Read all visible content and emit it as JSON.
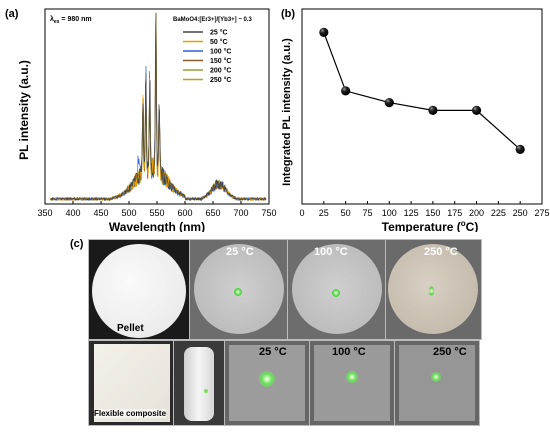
{
  "panel_a": {
    "tag": "(a)",
    "excitation_label": "λex = 980 nm",
    "excitation_main": "λ",
    "excitation_sub": "ex",
    "excitation_rest": " = 980 nm",
    "sample_label": "BaMoO4:[Er3+]/[Yb3+] ~ 0.3",
    "colors": [
      "#444444",
      "#e8a000",
      "#2f62d8",
      "#8a5a2b",
      "#8fa03a",
      "#c49a18"
    ]
  },
  "panel_b": {
    "tag": "(b)"
  },
  "panel_c": {
    "tag": "(c)",
    "pellet_label": "Pellet",
    "flexible_label": "Flexible composite",
    "top_temps": [
      "25 °C",
      "100 °C",
      "250 °C"
    ],
    "bottom_temps": [
      "25 °C",
      "100 °C",
      "250 °C"
    ]
  },
  "chart_data": [
    {
      "type": "line",
      "xlabel": "Wavelength (nm)",
      "ylabel": "PL intensity (a.u.)",
      "xlim": [
        350,
        750
      ],
      "xticks": [
        350,
        400,
        450,
        500,
        550,
        600,
        650,
        700,
        750
      ],
      "annotations": [
        "λex = 980 nm",
        "BaMoO4:[Er3+]/[Yb3+] ~ 0.3"
      ],
      "legend_position": "top-right",
      "series": [
        {
          "name": "25 °C"
        },
        {
          "name": "50 °C"
        },
        {
          "name": "100 °C"
        },
        {
          "name": "150 °C"
        },
        {
          "name": "200 °C"
        },
        {
          "name": "250 °C"
        }
      ],
      "peaks": [
        {
          "x": 525,
          "y": 0.45
        },
        {
          "x": 530,
          "y": 0.55
        },
        {
          "x": 537,
          "y": 0.5
        },
        {
          "x": 548,
          "y": 0.98
        },
        {
          "x": 554,
          "y": 0.4
        }
      ]
    },
    {
      "type": "scatter",
      "xlabel": "Temperature (°C)",
      "ylabel": "Integrated PL intensity (a.u.)",
      "xlim": [
        0,
        275
      ],
      "xticks": [
        0,
        25,
        50,
        75,
        100,
        125,
        150,
        175,
        200,
        225,
        250,
        275
      ],
      "x": [
        25,
        50,
        100,
        150,
        200,
        250
      ],
      "y": [
        0.88,
        0.58,
        0.52,
        0.48,
        0.48,
        0.28
      ],
      "ylim": [
        0,
        1
      ]
    }
  ]
}
